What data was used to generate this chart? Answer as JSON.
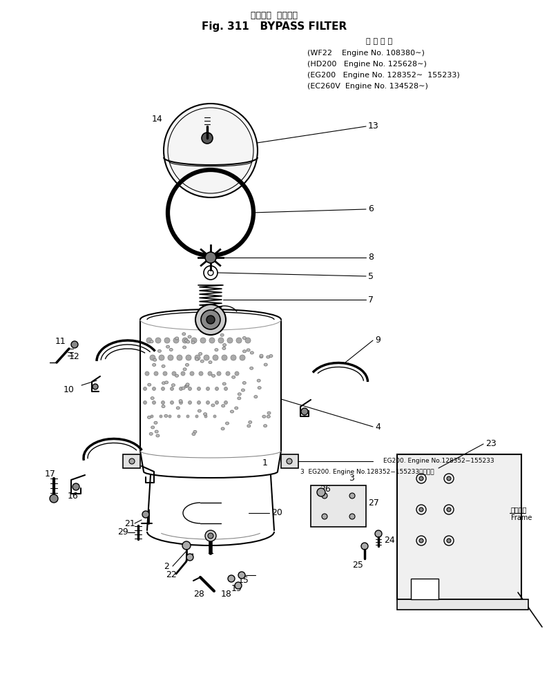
{
  "title_japanese": "バイパス  フィルタ",
  "title_english": "Fig. 311   BYPASS FILTER",
  "spec_header": "適 用 号 機",
  "spec_lines": [
    "(WF22    Engine No. 108380∼)",
    "(HD200   Engine No. 125628∼)",
    "(EG200   Engine No. 128352∼  155233)",
    "(EC260V  Engine No. 134528∼)"
  ],
  "note1": "3  EG200. Engine No.128352−155233適用号機",
  "note2": "EG200. Engine No.128352−155233",
  "frame_label_jp": "フレーム",
  "frame_label_en": "Frame",
  "bg_color": "#ffffff",
  "line_color": "#000000"
}
